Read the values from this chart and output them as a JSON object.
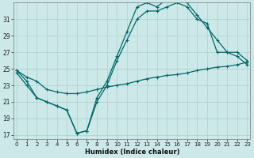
{
  "xlabel": "Humidex (Indice chaleur)",
  "bg_color": "#cce8e8",
  "grid_color": "#aad0d0",
  "line_color": "#006868",
  "x_ticks": [
    0,
    1,
    2,
    3,
    4,
    5,
    6,
    7,
    8,
    9,
    10,
    11,
    12,
    13,
    14,
    15,
    16,
    17,
    18,
    19,
    20,
    21,
    22,
    23
  ],
  "y_ticks": [
    17,
    19,
    21,
    23,
    25,
    27,
    29,
    31
  ],
  "xlim": [
    -0.3,
    23.3
  ],
  "ylim": [
    16.5,
    33.0
  ],
  "line_flat": {
    "x": [
      0,
      1,
      2,
      3,
      4,
      5,
      6,
      7,
      8,
      9,
      10,
      11,
      12,
      13,
      14,
      15,
      16,
      17,
      18,
      19,
      20,
      21,
      22,
      23
    ],
    "y": [
      24.8,
      24.0,
      23.5,
      22.5,
      22.2,
      22.0,
      22.0,
      22.2,
      22.5,
      22.8,
      23.0,
      23.2,
      23.5,
      23.8,
      24.0,
      24.2,
      24.3,
      24.5,
      24.8,
      25.0,
      25.2,
      25.3,
      25.5,
      25.8
    ]
  },
  "line_mid": {
    "x": [
      0,
      1,
      2,
      3,
      4,
      5,
      6,
      7,
      8,
      9,
      10,
      11,
      12,
      13,
      14,
      15,
      16,
      17,
      18,
      19,
      20,
      21,
      22,
      23
    ],
    "y": [
      24.5,
      23.0,
      21.5,
      21.0,
      20.5,
      20.0,
      17.2,
      17.5,
      21.0,
      23.0,
      26.0,
      28.5,
      31.0,
      32.0,
      32.0,
      32.5,
      33.0,
      32.5,
      31.0,
      30.5,
      27.0,
      27.0,
      26.5,
      25.5
    ]
  },
  "line_top": {
    "x": [
      0,
      1,
      2,
      3,
      4,
      5,
      6,
      7,
      8,
      9,
      10,
      11,
      12,
      13,
      14,
      15,
      16,
      17,
      18,
      19,
      20,
      21,
      22,
      23
    ],
    "y": [
      24.8,
      23.5,
      21.5,
      21.0,
      20.5,
      20.0,
      17.2,
      17.5,
      21.5,
      23.5,
      26.5,
      29.5,
      32.5,
      33.0,
      32.5,
      33.5,
      33.5,
      33.0,
      31.5,
      30.0,
      28.5,
      27.0,
      27.0,
      26.0
    ]
  }
}
